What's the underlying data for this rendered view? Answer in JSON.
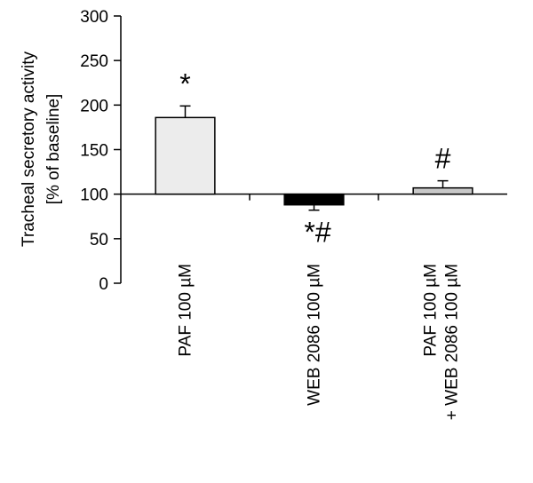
{
  "chart_data": {
    "type": "bar",
    "ylabel_line1": "Tracheal secretory activity",
    "ylabel_line2": "[% of baseline]",
    "ylim": [
      0,
      300
    ],
    "yticks": [
      "0",
      "50",
      "100",
      "150",
      "200",
      "250",
      "300"
    ],
    "baseline": 100,
    "categories": [
      {
        "line1": "PAF 100 µM",
        "line2": ""
      },
      {
        "line1": "WEB 2086 100 µM",
        "line2": ""
      },
      {
        "line1": "PAF 100 µM",
        "line2": "+ WEB 2086 100 µM"
      }
    ],
    "values": [
      186,
      88,
      107
    ],
    "errors": [
      13,
      6,
      8
    ],
    "bar_colors": [
      "#ececec",
      "#000000",
      "#c8c8c8"
    ],
    "significance": [
      "*",
      "*#",
      "#"
    ],
    "grid": false
  }
}
